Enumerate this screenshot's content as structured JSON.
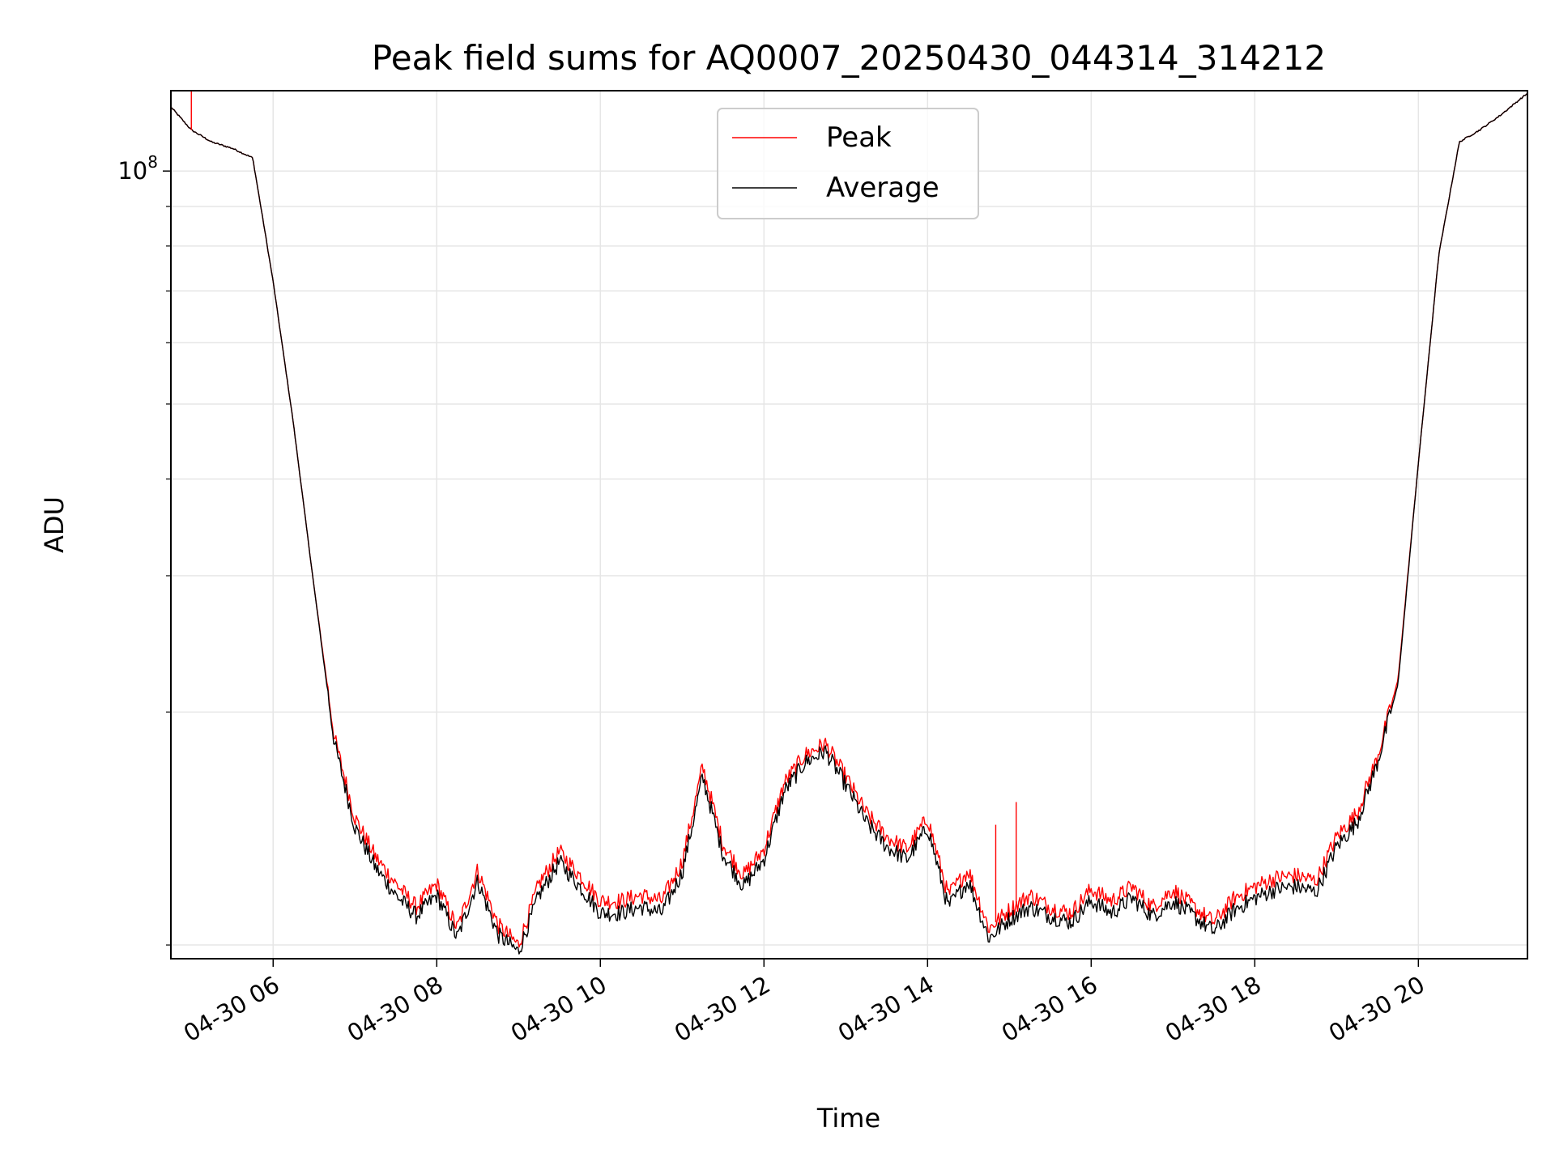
{
  "chart_data": {
    "type": "line",
    "title": "Peak field sums for AQ0007_20250430_044314_314212",
    "xlabel": "Time",
    "ylabel": "ADU",
    "yscale": "log",
    "ylim": [
      9600000,
      127000000
    ],
    "xlim": [
      "04-30 04:45",
      "04-30 21:20"
    ],
    "x_ticks": [
      "04-30 06",
      "04-30 08",
      "04-30 10",
      "04-30 12",
      "04-30 14",
      "04-30 16",
      "04-30 18",
      "04-30 20"
    ],
    "y_major_ticks": [
      {
        "value": 100000000,
        "base": "10",
        "exp": "8"
      }
    ],
    "y_minor_ticks": [
      10000000,
      20000000,
      30000000,
      40000000,
      50000000,
      60000000,
      70000000,
      80000000,
      90000000
    ],
    "grid": true,
    "legend_position": "top-center",
    "x": [
      "04-30 04:45",
      "04-30 05:00",
      "04-30 05:15",
      "04-30 05:30",
      "04-30 05:45",
      "04-30 06:00",
      "04-30 06:15",
      "04-30 06:30",
      "04-30 06:45",
      "04-30 07:00",
      "04-30 07:15",
      "04-30 07:30",
      "04-30 07:45",
      "04-30 08:00",
      "04-30 08:15",
      "04-30 08:30",
      "04-30 08:45",
      "04-30 09:00",
      "04-30 09:15",
      "04-30 09:30",
      "04-30 09:45",
      "04-30 10:00",
      "04-30 10:15",
      "04-30 10:30",
      "04-30 10:45",
      "04-30 11:00",
      "04-30 11:15",
      "04-30 11:30",
      "04-30 11:45",
      "04-30 12:00",
      "04-30 12:15",
      "04-30 12:30",
      "04-30 12:45",
      "04-30 13:00",
      "04-30 13:15",
      "04-30 13:30",
      "04-30 13:45",
      "04-30 14:00",
      "04-30 14:15",
      "04-30 14:30",
      "04-30 14:45",
      "04-30 15:00",
      "04-30 15:15",
      "04-30 15:30",
      "04-30 15:45",
      "04-30 16:00",
      "04-30 16:15",
      "04-30 16:30",
      "04-30 16:45",
      "04-30 17:00",
      "04-30 17:15",
      "04-30 17:30",
      "04-30 17:45",
      "04-30 18:00",
      "04-30 18:15",
      "04-30 18:30",
      "04-30 18:45",
      "04-30 19:00",
      "04-30 19:15",
      "04-30 19:30",
      "04-30 19:45",
      "04-30 20:00",
      "04-30 20:15",
      "04-30 20:30",
      "04-30 20:45",
      "04-30 21:00",
      "04-30 21:15",
      "04-30 21:20"
    ],
    "series": [
      {
        "name": "Peak",
        "color": "#ff0000",
        "values": [
          121000000,
          113000000,
          109000000,
          107000000,
          104000000,
          72000000,
          47000000,
          29000000,
          18500000,
          14600000,
          13000000,
          12000000,
          11200000,
          12000000,
          10500000,
          12500000,
          10600000,
          10000000,
          12000000,
          13200000,
          12300000,
          11400000,
          11400000,
          11600000,
          11400000,
          12800000,
          17000000,
          13500000,
          12300000,
          13300000,
          16200000,
          17600000,
          18200000,
          16500000,
          14800000,
          13800000,
          13300000,
          14600000,
          11600000,
          12500000,
          10500000,
          11100000,
          11600000,
          11200000,
          11000000,
          11800000,
          11400000,
          11900000,
          11200000,
          11800000,
          11200000,
          10700000,
          11500000,
          11900000,
          12200000,
          12300000,
          12100000,
          13800000,
          14800000,
          17500000,
          22000000,
          42000000,
          78000000,
          109000000,
          113000000,
          118000000,
          124000000,
          126000000
        ]
      },
      {
        "name": "Average",
        "color": "#000000",
        "values": [
          121000000,
          113000000,
          109000000,
          107000000,
          104000000,
          72000000,
          47000000,
          29000000,
          18200000,
          14200000,
          12600000,
          11600000,
          10900000,
          11600000,
          10200000,
          12100000,
          10300000,
          9800000,
          11600000,
          12800000,
          11900000,
          11000000,
          11000000,
          11200000,
          11000000,
          12400000,
          16500000,
          13100000,
          11900000,
          12900000,
          15800000,
          17200000,
          17800000,
          16100000,
          14400000,
          13400000,
          12900000,
          14200000,
          11200000,
          12100000,
          10200000,
          10800000,
          11200000,
          10900000,
          10700000,
          11400000,
          11000000,
          11500000,
          10900000,
          11400000,
          10900000,
          10400000,
          11100000,
          11500000,
          11800000,
          11900000,
          11700000,
          13400000,
          14400000,
          17200000,
          21700000,
          42000000,
          78000000,
          109000000,
          113000000,
          118000000,
          124000000,
          126000000
        ]
      }
    ],
    "annotations": [
      {
        "series": "Peak",
        "x": "04-30 05:00",
        "value": 127000000,
        "kind": "spike"
      },
      {
        "series": "Peak",
        "x": "04-30 14:50",
        "value": 14300000,
        "kind": "spike"
      },
      {
        "series": "Peak",
        "x": "04-30 15:05",
        "value": 15300000,
        "kind": "spike"
      }
    ]
  }
}
